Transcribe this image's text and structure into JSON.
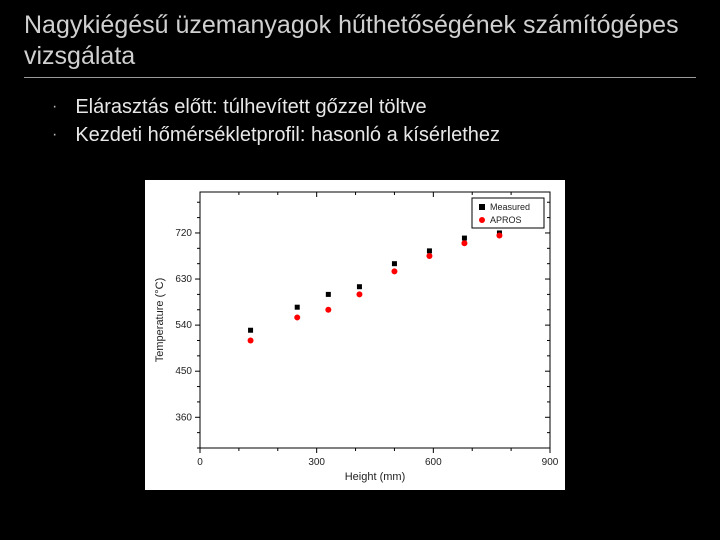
{
  "title": "Nagykiégésű üzemanyagok hűthetőségének számítógépes vizsgálata",
  "bullets": [
    "Elárasztás előtt: túlhevített gőzzel töltve",
    "Kezdeti hőmérsékletprofil: hasonló a kísérlethez"
  ],
  "chart": {
    "type": "scatter",
    "background_color": "#ffffff",
    "axis_color": "#000000",
    "xlabel": "Height (mm)",
    "ylabel": "Temperature (°C)",
    "label_fontsize": 11,
    "tick_fontsize": 10,
    "xlim": [
      0,
      900
    ],
    "ylim": [
      300,
      800
    ],
    "xtick_step": 300,
    "ytick_major": [
      360,
      450,
      540,
      630,
      720
    ],
    "minor_ticks": true,
    "series": [
      {
        "name": "Measured",
        "marker": "square",
        "marker_size": 5,
        "color": "#000000",
        "points": [
          [
            130,
            530
          ],
          [
            250,
            575
          ],
          [
            330,
            600
          ],
          [
            410,
            615
          ],
          [
            500,
            660
          ],
          [
            590,
            685
          ],
          [
            680,
            710
          ],
          [
            770,
            720
          ]
        ]
      },
      {
        "name": "APROS",
        "marker": "circle",
        "marker_size": 5,
        "color": "#ff0000",
        "points": [
          [
            130,
            510
          ],
          [
            250,
            555
          ],
          [
            330,
            570
          ],
          [
            410,
            600
          ],
          [
            500,
            645
          ],
          [
            590,
            675
          ],
          [
            680,
            700
          ],
          [
            770,
            715
          ]
        ]
      }
    ],
    "legend": {
      "position": "top-right",
      "border_color": "#000000",
      "background": "#ffffff"
    }
  }
}
